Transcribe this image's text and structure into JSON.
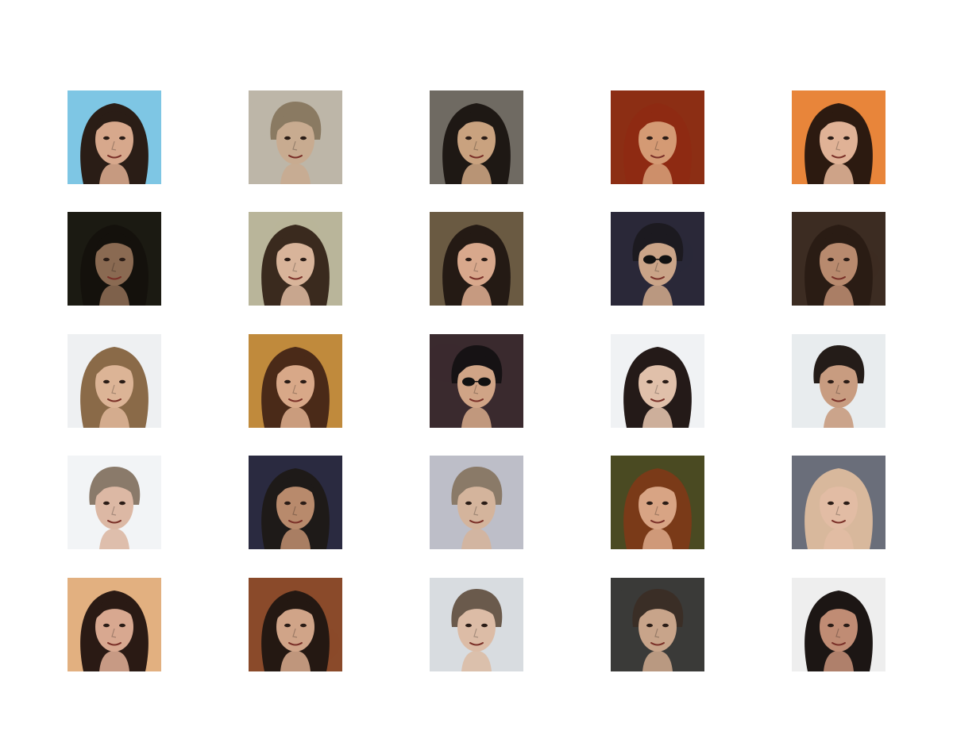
{
  "grid": {
    "rows": 5,
    "cols": 5,
    "tiles": [
      {
        "bg": "#7ec6e4",
        "hair": "#2a1d16",
        "skin": "#d7a88c",
        "hair_style": "long",
        "glasses": false
      },
      {
        "bg": "#bdb6a8",
        "hair": "#8a7a62",
        "skin": "#c8ab90",
        "hair_style": "short",
        "glasses": false
      },
      {
        "bg": "#6f6a62",
        "hair": "#1e1814",
        "skin": "#c9a27f",
        "hair_style": "long",
        "glasses": false
      },
      {
        "bg": "#8c2e14",
        "hair": "#8e2a12",
        "skin": "#d49a74",
        "hair_style": "long",
        "glasses": false
      },
      {
        "bg": "#e8853a",
        "hair": "#2c1a10",
        "skin": "#e0b296",
        "hair_style": "long",
        "glasses": false
      },
      {
        "bg": "#1b1a12",
        "hair": "#14110c",
        "skin": "#8a6a52",
        "hair_style": "long",
        "glasses": false
      },
      {
        "bg": "#b9b59a",
        "hair": "#3a2a1e",
        "skin": "#d8b49a",
        "hair_style": "long",
        "glasses": false
      },
      {
        "bg": "#6a5a42",
        "hair": "#241a14",
        "skin": "#d8a88c",
        "hair_style": "long",
        "glasses": false
      },
      {
        "bg": "#2a2838",
        "hair": "#1c1a20",
        "skin": "#caa488",
        "hair_style": "short",
        "glasses": true
      },
      {
        "bg": "#3c2c22",
        "hair": "#2a1c14",
        "skin": "#b88a6e",
        "hair_style": "long",
        "glasses": false
      },
      {
        "bg": "#eef0f2",
        "hair": "#8a6a48",
        "skin": "#dcb496",
        "hair_style": "long",
        "glasses": false
      },
      {
        "bg": "#c08a3c",
        "hair": "#4a2a18",
        "skin": "#d8a888",
        "hair_style": "long",
        "glasses": false
      },
      {
        "bg": "#3a2a2e",
        "hair": "#161214",
        "skin": "#d0a486",
        "hair_style": "short",
        "glasses": true
      },
      {
        "bg": "#f0f2f4",
        "hair": "#241a18",
        "skin": "#e0c0aa",
        "hair_style": "long",
        "glasses": false
      },
      {
        "bg": "#e8ecee",
        "hair": "#241c18",
        "skin": "#c89c80",
        "hair_style": "short",
        "glasses": false
      },
      {
        "bg": "#f2f4f6",
        "hair": "#8a7a6a",
        "skin": "#dcb8a4",
        "hair_style": "short",
        "glasses": false
      },
      {
        "bg": "#2a2a40",
        "hair": "#1e1a18",
        "skin": "#b88a6c",
        "hair_style": "long",
        "glasses": false
      },
      {
        "bg": "#bdbec8",
        "hair": "#8a7a68",
        "skin": "#d4b49c",
        "hair_style": "short",
        "glasses": false
      },
      {
        "bg": "#4a4a22",
        "hair": "#7a3a18",
        "skin": "#d8a484",
        "hair_style": "long",
        "glasses": false
      },
      {
        "bg": "#6a6e7a",
        "hair": "#d8b89c",
        "skin": "#e2bca4",
        "hair_style": "long",
        "glasses": false
      },
      {
        "bg": "#e2b080",
        "hair": "#2a1a14",
        "skin": "#d8a890",
        "hair_style": "long",
        "glasses": false
      },
      {
        "bg": "#8a4a2a",
        "hair": "#241812",
        "skin": "#d0a488",
        "hair_style": "long",
        "glasses": false
      },
      {
        "bg": "#d8dce0",
        "hair": "#6a5a4c",
        "skin": "#dcbca6",
        "hair_style": "short",
        "glasses": false
      },
      {
        "bg": "#3a3a38",
        "hair": "#3a2e26",
        "skin": "#c8a48a",
        "hair_style": "short",
        "glasses": false
      },
      {
        "bg": "#eeeeee",
        "hair": "#1c1614",
        "skin": "#c08c74",
        "hair_style": "long",
        "glasses": false
      }
    ]
  }
}
